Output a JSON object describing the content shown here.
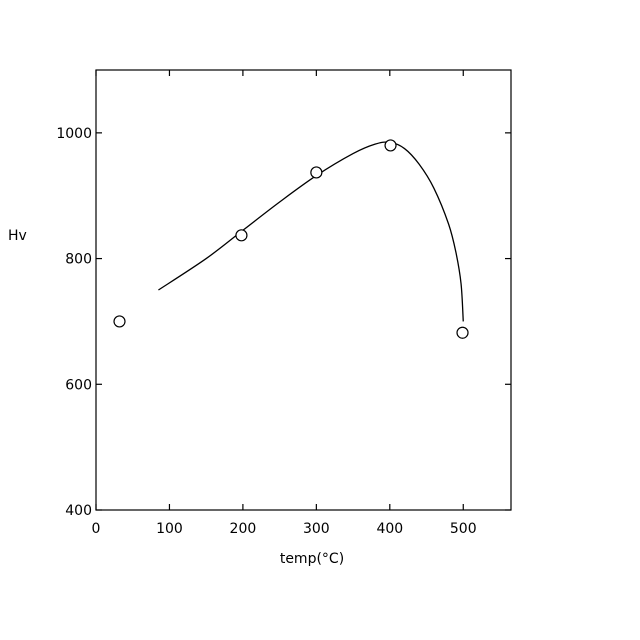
{
  "chart_data": {
    "type": "scatter",
    "title": "",
    "xlabel": "temp(°C)",
    "ylabel": "Hv",
    "xlim": [
      0,
      565
    ],
    "ylim": [
      400,
      1100
    ],
    "xticks": [
      0,
      100,
      200,
      300,
      400,
      500
    ],
    "yticks": [
      400,
      600,
      800,
      1000
    ],
    "grid": false,
    "legend": "none",
    "series": [
      {
        "marker": "open-circle",
        "x": [
          32,
          198,
          300,
          401,
          499
        ],
        "y": [
          700,
          837,
          937,
          980,
          682
        ]
      }
    ],
    "fit_curve": {
      "style": "solid-line",
      "x": [
        85,
        150,
        200,
        250,
        300,
        350,
        380,
        400,
        420,
        440,
        460,
        480,
        490,
        497,
        500
      ],
      "y": [
        750,
        800,
        845,
        890,
        932,
        967,
        982,
        985,
        975,
        950,
        912,
        855,
        810,
        760,
        700
      ]
    }
  }
}
